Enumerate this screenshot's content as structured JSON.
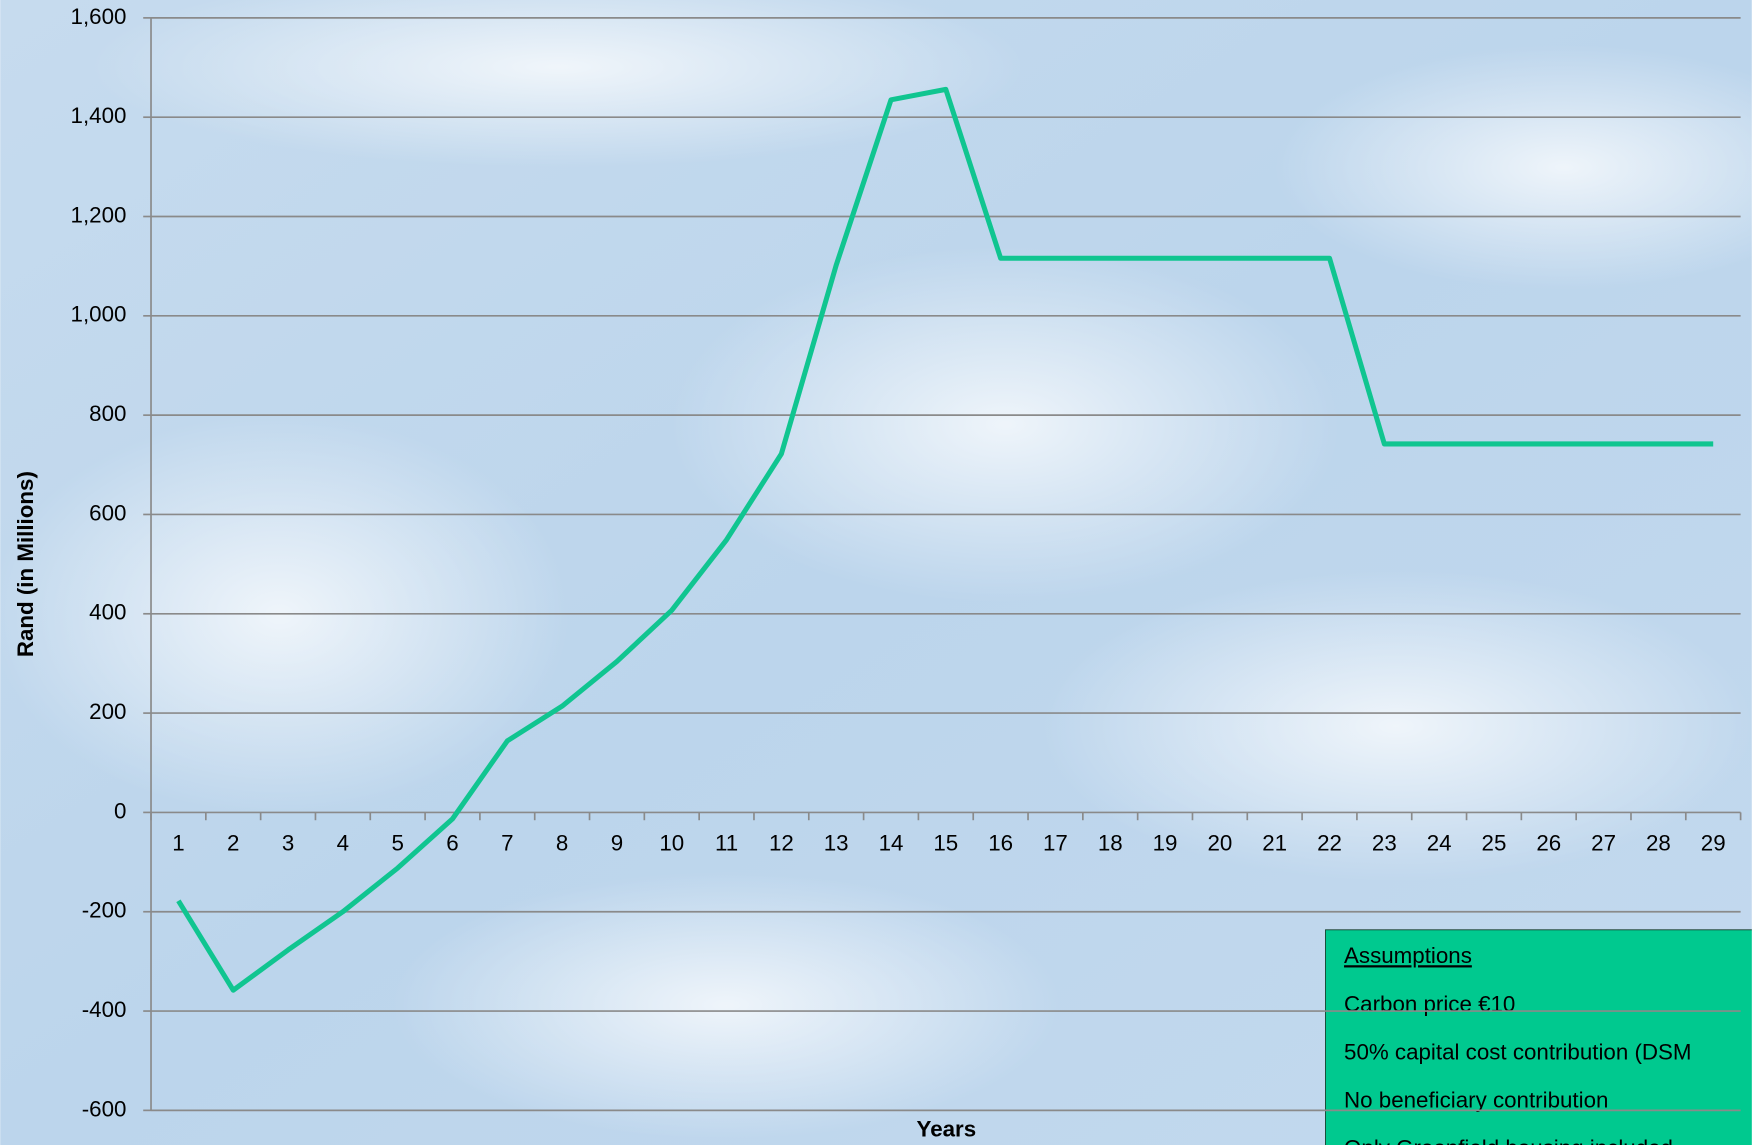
{
  "chart_data": {
    "type": "line",
    "y_label": "Rand (in Millions)",
    "x_label": "Years",
    "categories": [
      "1",
      "2",
      "3",
      "4",
      "5",
      "6",
      "7",
      "8",
      "9",
      "10",
      "11",
      "12",
      "13",
      "14",
      "15",
      "16",
      "17",
      "18",
      "19",
      "20",
      "21",
      "22",
      "23",
      "24",
      "25",
      "26",
      "27",
      "28",
      "29"
    ],
    "values": [
      -178,
      -358,
      -277,
      -200,
      -112,
      -13,
      144,
      214,
      304,
      407,
      549,
      722,
      1102,
      1435,
      1456,
      1116,
      1116,
      1116,
      1116,
      1116,
      1116,
      1116,
      742,
      742,
      742,
      742,
      742,
      742,
      742
    ],
    "color": "#10c590",
    "ylim": [
      -600,
      1600
    ],
    "yticks": [
      -600,
      -400,
      -200,
      0,
      200,
      400,
      {
        "value": 600,
        "label": "600"
      },
      {
        "value": 800,
        "label": "800"
      },
      {
        "value": 1000,
        "label": "1,000"
      },
      {
        "value": 1200,
        "label": "1,200"
      },
      {
        "value": 1400,
        "label": "1,400"
      },
      {
        "value": 1600,
        "label": "1,600"
      }
    ],
    "grid": true,
    "annotation": {
      "title": "Assumptions",
      "lines": [
        "Carbon price €10",
        "50% capital cost contribution (DSM",
        "No beneficiary contribution",
        "Only Greenfield housing included"
      ]
    }
  }
}
